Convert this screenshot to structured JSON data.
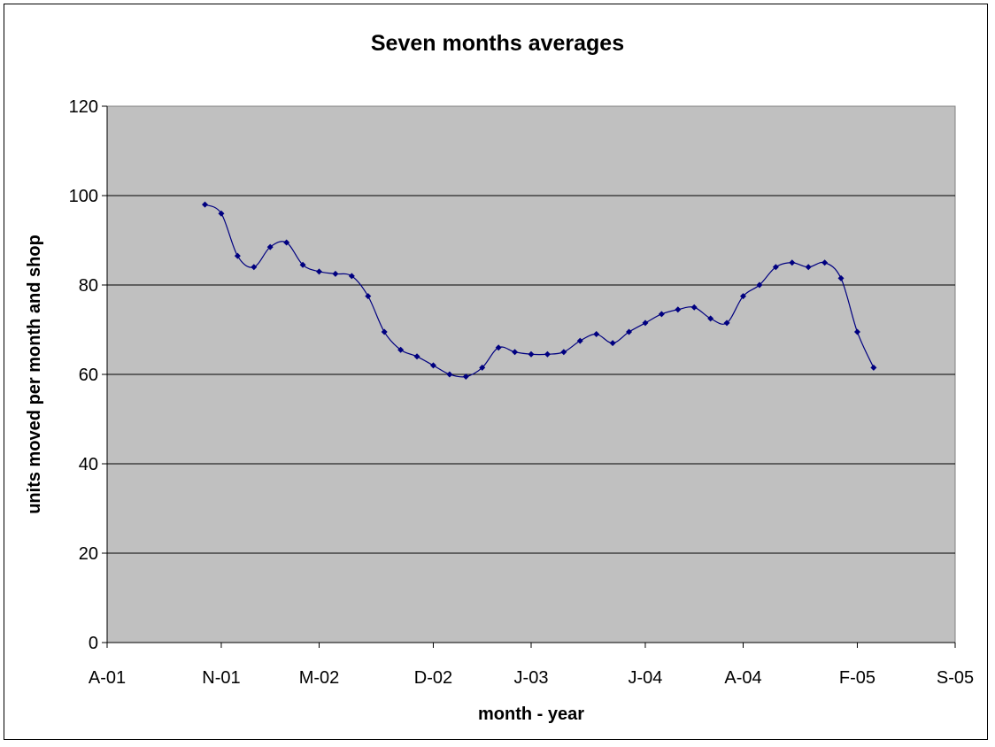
{
  "chart_data": {
    "type": "line",
    "title": "Seven months averages",
    "xlabel": "month - year",
    "ylabel": "units moved per month and shop",
    "x_tick_labels": [
      "A-01",
      "N-01",
      "M-02",
      "D-02",
      "J-03",
      "J-04",
      "A-04",
      "F-05",
      "S-05"
    ],
    "x_tick_dates": [
      "2001-04",
      "2001-11",
      "2002-05",
      "2002-12",
      "2003-06",
      "2004-01",
      "2004-07",
      "2005-02",
      "2005-08"
    ],
    "y_ticks": [
      0,
      20,
      40,
      60,
      80,
      100,
      120
    ],
    "ylim": [
      0,
      120
    ],
    "xlim": [
      "2001-04",
      "2005-08"
    ],
    "grid": "horizontal",
    "legend": "none",
    "colors": {
      "plot_background": "#c0c0c0",
      "series": "#000080",
      "gridline": "#000000"
    },
    "series": [
      {
        "marker": "diamond",
        "smooth": true,
        "points": [
          [
            "2001-10",
            98.0
          ],
          [
            "2001-11",
            96.0
          ],
          [
            "2001-12",
            86.5
          ],
          [
            "2002-01",
            84.0
          ],
          [
            "2002-02",
            88.5
          ],
          [
            "2002-03",
            89.5
          ],
          [
            "2002-04",
            84.5
          ],
          [
            "2002-05",
            83.0
          ],
          [
            "2002-06",
            82.5
          ],
          [
            "2002-07",
            82.0
          ],
          [
            "2002-08",
            77.5
          ],
          [
            "2002-09",
            69.5
          ],
          [
            "2002-10",
            65.5
          ],
          [
            "2002-11",
            64.0
          ],
          [
            "2002-12",
            62.0
          ],
          [
            "2003-01",
            60.0
          ],
          [
            "2003-02",
            59.5
          ],
          [
            "2003-03",
            61.5
          ],
          [
            "2003-04",
            66.0
          ],
          [
            "2003-05",
            65.0
          ],
          [
            "2003-06",
            64.5
          ],
          [
            "2003-07",
            64.5
          ],
          [
            "2003-08",
            65.0
          ],
          [
            "2003-09",
            67.5
          ],
          [
            "2003-10",
            69.0
          ],
          [
            "2003-11",
            67.0
          ],
          [
            "2003-12",
            69.5
          ],
          [
            "2004-01",
            71.5
          ],
          [
            "2004-02",
            73.5
          ],
          [
            "2004-03",
            74.5
          ],
          [
            "2004-04",
            75.0
          ],
          [
            "2004-05",
            72.5
          ],
          [
            "2004-06",
            71.5
          ],
          [
            "2004-07",
            77.5
          ],
          [
            "2004-08",
            80.0
          ],
          [
            "2004-09",
            84.0
          ],
          [
            "2004-10",
            85.0
          ],
          [
            "2004-11",
            84.0
          ],
          [
            "2004-12",
            85.0
          ],
          [
            "2005-01",
            81.5
          ],
          [
            "2005-02",
            69.5
          ],
          [
            "2005-03",
            61.5
          ]
        ]
      }
    ]
  }
}
